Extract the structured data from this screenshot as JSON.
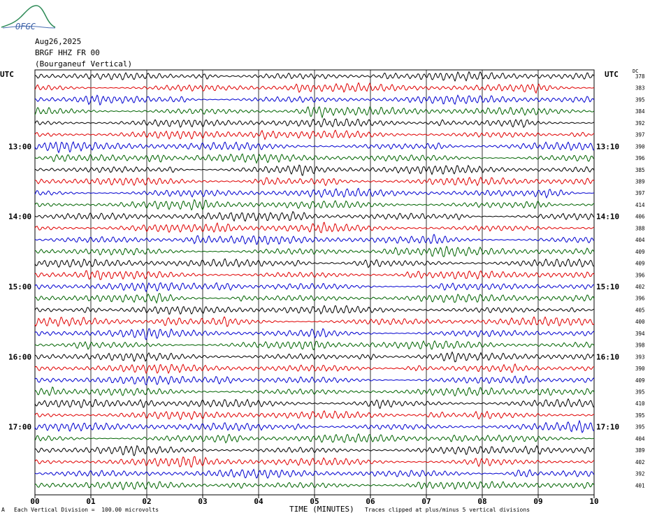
{
  "logo": {
    "text": "OFGC"
  },
  "header": {
    "date": "Aug26,2025",
    "station": "BRGF HHZ FR 00",
    "location": "(Bourganeuf Vertical)"
  },
  "utc_left": "UTC",
  "utc_right": "UTC",
  "dc_label": "DC",
  "footer": {
    "scale_note": "Each Vertical Division =  100.00 microvolts",
    "clip_note": "Traces clipped at plus/minus 5 vertical divisions",
    "corner_mark": "A"
  },
  "chart_data": {
    "type": "line",
    "title": "",
    "xlabel": "TIME (MINUTES)",
    "ylabel": "",
    "xlim": [
      0,
      10
    ],
    "x_ticks": [
      "00",
      "01",
      "02",
      "03",
      "04",
      "05",
      "06",
      "07",
      "08",
      "09",
      "10"
    ],
    "grid": true,
    "trace_colors": [
      "#000000",
      "#e00000",
      "#0000d0",
      "#006400"
    ],
    "left_time_labels": [
      {
        "row": 6,
        "label": "13:00"
      },
      {
        "row": 12,
        "label": "14:00"
      },
      {
        "row": 18,
        "label": "15:00"
      },
      {
        "row": 24,
        "label": "16:00"
      },
      {
        "row": 30,
        "label": "17:00"
      }
    ],
    "right_time_labels": [
      {
        "row": 6,
        "label": "13:10"
      },
      {
        "row": 12,
        "label": "14:10"
      },
      {
        "row": 18,
        "label": "15:10"
      },
      {
        "row": 24,
        "label": "16:10"
      },
      {
        "row": 30,
        "label": "17:10"
      }
    ],
    "dc_offsets": [
      378,
      383,
      395,
      384,
      392,
      397,
      390,
      396,
      385,
      389,
      397,
      414,
      406,
      388,
      404,
      409,
      409,
      396,
      402,
      396,
      405,
      400,
      394,
      398,
      393,
      390,
      409,
      395,
      410,
      395,
      395,
      404,
      389,
      402,
      392,
      401
    ]
  }
}
